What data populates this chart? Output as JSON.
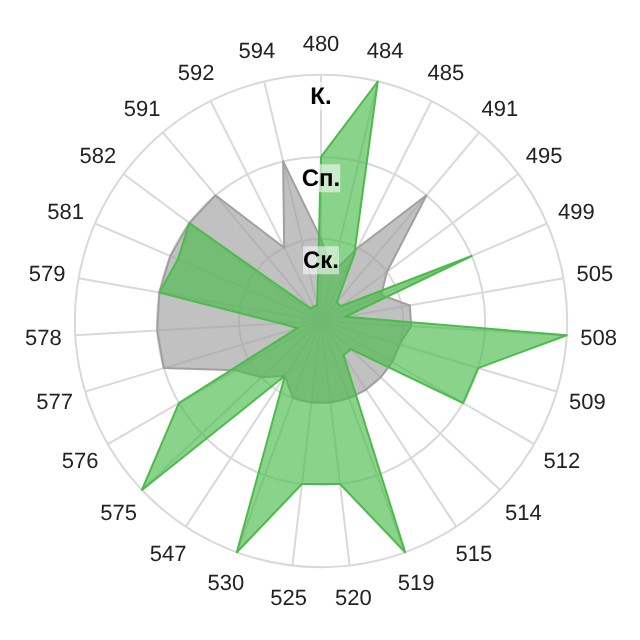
{
  "chart_data": {
    "type": "radar",
    "categories": [
      "480",
      "484",
      "485",
      "491",
      "495",
      "499",
      "505",
      "508",
      "509",
      "512",
      "514",
      "515",
      "519",
      "520",
      "525",
      "530",
      "547",
      "575",
      "576",
      "577",
      "578",
      "579",
      "581",
      "582",
      "591",
      "592",
      "594"
    ],
    "ylim": [
      0,
      3
    ],
    "yticks": [
      {
        "value": 1,
        "label": "Ск."
      },
      {
        "value": 2,
        "label": "Сп."
      },
      {
        "value": 3,
        "label": "К."
      }
    ],
    "grid": true,
    "marker": "none",
    "series": [
      {
        "color": "#a0a0a0",
        "values": [
          1.0,
          0.6,
          1.0,
          2.0,
          1.0,
          0.8,
          1.1,
          1.1,
          1.0,
          1.0,
          1.0,
          1.0,
          1.0,
          1.0,
          1.0,
          1.0,
          0.8,
          1.0,
          1.2,
          2.0,
          2.0,
          2.0,
          2.0,
          2.0,
          2.0,
          1.0,
          2.0
        ]
      },
      {
        "color": "#4cbb4c",
        "values": [
          2.0,
          3.0,
          0.9,
          0.3,
          0.3,
          2.0,
          0.3,
          3.0,
          2.0,
          2.0,
          0.5,
          0.5,
          3.0,
          2.0,
          2.0,
          3.0,
          0.8,
          3.0,
          2.0,
          0.3,
          0.5,
          2.0,
          1.9,
          2.0,
          0.2,
          0.2,
          0.2
        ]
      }
    ]
  }
}
